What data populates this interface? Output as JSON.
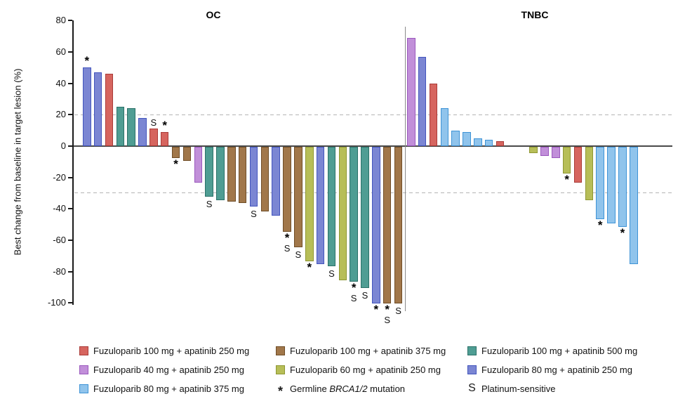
{
  "figure_background": "#ffffff",
  "chart_data": {
    "type": "bar",
    "subtype": "waterfall",
    "ylabel": "Best change from baseline in target lesion (%)",
    "ylim": [
      -100,
      80
    ],
    "yticks": [
      80,
      60,
      40,
      20,
      0,
      -20,
      -40,
      -60,
      -80,
      -100
    ],
    "reference_lines": [
      20,
      -30
    ],
    "grid": "off",
    "legend_position": "bottom",
    "treatments": {
      "fz100_ap250": {
        "label": "Fuzuloparib 100 mg + apatinib 250 mg",
        "fill": "#d6655f",
        "stroke": "#aa3b38"
      },
      "fz100_ap375": {
        "label": "Fuzuloparib 100 mg + apatinib 375 mg",
        "fill": "#a1774a",
        "stroke": "#6f4d27"
      },
      "fz100_ap500": {
        "label": "Fuzuloparib 100 mg + apatinib 500 mg",
        "fill": "#4f9d93",
        "stroke": "#2b7168"
      },
      "fz40_ap250": {
        "label": "Fuzuloparib 40 mg + apatinib 250 mg",
        "fill": "#c18fd9",
        "stroke": "#9a58bd"
      },
      "fz60_ap250": {
        "label": "Fuzuloparib 60 mg + apatinib 250 mg",
        "fill": "#b7be58",
        "stroke": "#8e9733"
      },
      "fz80_ap250": {
        "label": "Fuzuloparib 80 mg + apatinib 250 mg",
        "fill": "#7b86d3",
        "stroke": "#4355bd"
      },
      "fz80_ap375": {
        "label": "Fuzuloparib 80 mg + apatinib 375 mg",
        "fill": "#90c4ec",
        "stroke": "#3e93d6"
      }
    },
    "mark_meanings": {
      "*": "Germline BRCA1/2 mutation",
      "S": "Platinum-sensitive"
    },
    "groups": [
      {
        "title": "OC",
        "gap_after_index": null,
        "bars": [
          {
            "value": 50,
            "treatment": "fz80_ap250",
            "marks": [
              "*"
            ]
          },
          {
            "value": 47,
            "treatment": "fz80_ap250",
            "marks": []
          },
          {
            "value": 46,
            "treatment": "fz100_ap250",
            "marks": []
          },
          {
            "value": 25,
            "treatment": "fz100_ap500",
            "marks": []
          },
          {
            "value": 24,
            "treatment": "fz100_ap500",
            "marks": []
          },
          {
            "value": 18,
            "treatment": "fz80_ap250",
            "marks": []
          },
          {
            "value": 11,
            "treatment": "fz100_ap250",
            "marks": [
              "S"
            ]
          },
          {
            "value": 9,
            "treatment": "fz100_ap250",
            "marks": [
              "*"
            ]
          },
          {
            "value": -7,
            "treatment": "fz100_ap375",
            "marks": [
              "*"
            ]
          },
          {
            "value": -9,
            "treatment": "fz100_ap375",
            "marks": []
          },
          {
            "value": -23,
            "treatment": "fz40_ap250",
            "marks": []
          },
          {
            "value": -32,
            "treatment": "fz100_ap500",
            "marks": [
              "S"
            ]
          },
          {
            "value": -34,
            "treatment": "fz100_ap500",
            "marks": []
          },
          {
            "value": -35,
            "treatment": "fz100_ap375",
            "marks": []
          },
          {
            "value": -36,
            "treatment": "fz100_ap375",
            "marks": []
          },
          {
            "value": -38,
            "treatment": "fz80_ap250",
            "marks": [
              "S"
            ]
          },
          {
            "value": -41,
            "treatment": "fz100_ap375",
            "marks": []
          },
          {
            "value": -44,
            "treatment": "fz80_ap250",
            "marks": []
          },
          {
            "value": -54,
            "treatment": "fz100_ap375",
            "marks": [
              "*",
              "S"
            ]
          },
          {
            "value": -64,
            "treatment": "fz100_ap375",
            "marks": [
              "S"
            ]
          },
          {
            "value": -73,
            "treatment": "fz60_ap250",
            "marks": [
              "*"
            ]
          },
          {
            "value": -75,
            "treatment": "fz80_ap250",
            "marks": []
          },
          {
            "value": -76,
            "treatment": "fz100_ap500",
            "marks": [
              "S"
            ]
          },
          {
            "value": -85,
            "treatment": "fz60_ap250",
            "marks": []
          },
          {
            "value": -86,
            "treatment": "fz100_ap500",
            "marks": [
              "*",
              "S"
            ]
          },
          {
            "value": -90,
            "treatment": "fz100_ap500",
            "marks": [
              "S"
            ]
          },
          {
            "value": -100,
            "treatment": "fz80_ap250",
            "marks": [
              "*"
            ]
          },
          {
            "value": -100,
            "treatment": "fz100_ap375",
            "marks": [
              "*",
              "S"
            ]
          },
          {
            "value": -100,
            "treatment": "fz100_ap375",
            "marks": [
              "S"
            ]
          }
        ]
      },
      {
        "title": "TNBC",
        "gap_after_index": 9,
        "gap_slots": 2,
        "bars": [
          {
            "value": 69,
            "treatment": "fz40_ap250",
            "marks": []
          },
          {
            "value": 57,
            "treatment": "fz80_ap250",
            "marks": []
          },
          {
            "value": 40,
            "treatment": "fz100_ap250",
            "marks": []
          },
          {
            "value": 24,
            "treatment": "fz80_ap375",
            "marks": []
          },
          {
            "value": 10,
            "treatment": "fz80_ap375",
            "marks": []
          },
          {
            "value": 9,
            "treatment": "fz80_ap375",
            "marks": []
          },
          {
            "value": 5,
            "treatment": "fz80_ap375",
            "marks": []
          },
          {
            "value": 4,
            "treatment": "fz80_ap375",
            "marks": []
          },
          {
            "value": 3,
            "treatment": "fz100_ap250",
            "marks": []
          },
          {
            "value": -4,
            "treatment": "fz60_ap250",
            "marks": []
          },
          {
            "value": -6,
            "treatment": "fz40_ap250",
            "marks": []
          },
          {
            "value": -7,
            "treatment": "fz40_ap250",
            "marks": []
          },
          {
            "value": -17,
            "treatment": "fz60_ap250",
            "marks": [
              "*"
            ]
          },
          {
            "value": -23,
            "treatment": "fz100_ap250",
            "marks": []
          },
          {
            "value": -34,
            "treatment": "fz60_ap250",
            "marks": []
          },
          {
            "value": -46,
            "treatment": "fz80_ap375",
            "marks": [
              "*"
            ]
          },
          {
            "value": -49,
            "treatment": "fz80_ap375",
            "marks": []
          },
          {
            "value": -51,
            "treatment": "fz80_ap375",
            "marks": [
              "*"
            ]
          },
          {
            "value": -75,
            "treatment": "fz80_ap375",
            "marks": []
          }
        ]
      }
    ]
  },
  "legend": {
    "columns": [
      {
        "items": [
          {
            "swatch": "fz100_ap250",
            "label": "Fuzuloparib 100 mg + apatinib 250 mg"
          },
          {
            "swatch": "fz40_ap250",
            "label": "Fuzuloparib 40 mg + apatinib 250 mg"
          },
          {
            "swatch": "fz80_ap375",
            "label": "Fuzuloparib 80 mg + apatinib 375 mg"
          }
        ]
      },
      {
        "items": [
          {
            "swatch": "fz100_ap375",
            "label": "Fuzuloparib 100 mg + apatinib 375 mg"
          },
          {
            "swatch": "fz60_ap250",
            "label": "Fuzuloparib 60 mg + apatinib 250 mg"
          },
          {
            "symbol": "*",
            "label_prefix": "Germline ",
            "label_italic": "BRCA1/2",
            "label_suffix": " mutation"
          }
        ]
      },
      {
        "items": [
          {
            "swatch": "fz100_ap500",
            "label": "Fuzuloparib 100 mg + apatinib 500 mg"
          },
          {
            "swatch": "fz80_ap250",
            "label": "Fuzuloparib 80 mg + apatinib 250 mg"
          },
          {
            "symbol": "S",
            "label": "Platinum-sensitive"
          }
        ]
      }
    ]
  }
}
